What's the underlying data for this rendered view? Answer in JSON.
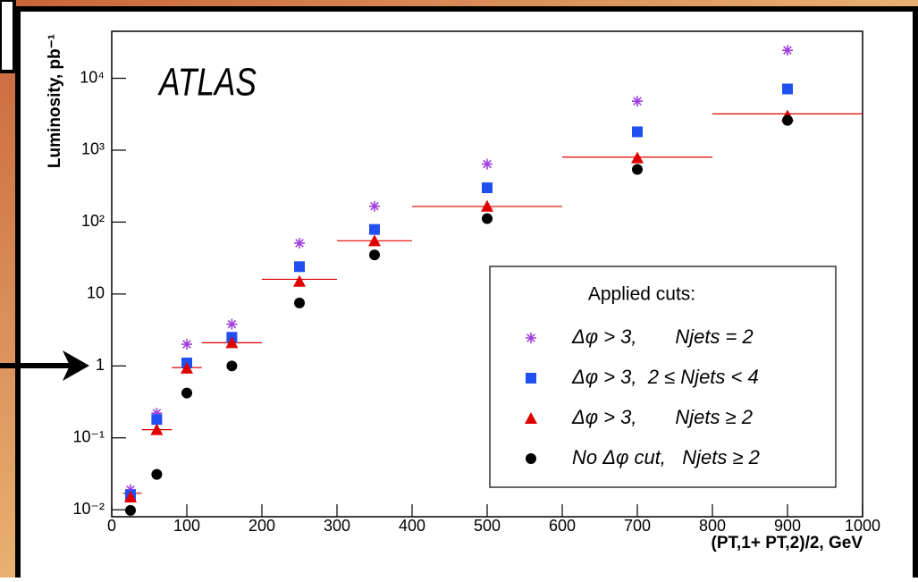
{
  "chart_data": {
    "type": "scatter",
    "annotation": "ATLAS",
    "xlabel": "(PT,1+ PT,2)/2, GeV",
    "ylabel": "Luminosity, pb⁻¹",
    "xlim": [
      0,
      1000
    ],
    "xticks": [
      0,
      100,
      200,
      300,
      400,
      500,
      600,
      700,
      800,
      900,
      1000
    ],
    "ylim": [
      0.008,
      45000
    ],
    "ylog": true,
    "yticks": [
      {
        "value": 0.01,
        "label": "10⁻²"
      },
      {
        "value": 0.1,
        "label": "10⁻¹"
      },
      1,
      10,
      {
        "value": 100,
        "label": "10²"
      },
      {
        "value": 1000,
        "label": "10³"
      },
      {
        "value": 10000,
        "label": "10⁴"
      }
    ],
    "legend_title": "Applied cuts:",
    "legend_position": "lower right",
    "x": [
      25,
      60,
      100,
      160,
      250,
      350,
      500,
      700,
      900
    ],
    "series": [
      {
        "name": "Δφ > 3,       Njets = 2",
        "color": "#a040e0",
        "marker": "star",
        "values": [
          0.019,
          0.22,
          2.0,
          3.8,
          51,
          166,
          640,
          4800,
          24500
        ]
      },
      {
        "name": "Δφ > 3,  2 ≤ Njets < 4",
        "color": "#2050f0",
        "marker": "square",
        "values": [
          0.016,
          0.18,
          1.1,
          2.5,
          24,
          79,
          300,
          1800,
          7100
        ]
      },
      {
        "name": "Δφ > 3,       Njets ≥ 2",
        "color": "#e00000",
        "marker": "triangle",
        "values": [
          0.015,
          0.13,
          0.93,
          2.1,
          15,
          55,
          166,
          780,
          3000
        ]
      },
      {
        "name": "No Δφ cut,   Njets ≥ 2",
        "color": "#000000",
        "marker": "circle",
        "values": [
          0.0098,
          0.031,
          0.42,
          1.0,
          7.5,
          35,
          112,
          540,
          2600
        ]
      }
    ],
    "segments": {
      "color": "#e00000",
      "xmin": [
        15,
        40,
        80,
        120,
        200,
        300,
        400,
        600,
        800
      ],
      "xmax": [
        40,
        80,
        120,
        200,
        300,
        400,
        600,
        800,
        1000
      ],
      "values": [
        0.017,
        0.13,
        0.95,
        2.1,
        16,
        55,
        165,
        800,
        3200
      ]
    }
  }
}
